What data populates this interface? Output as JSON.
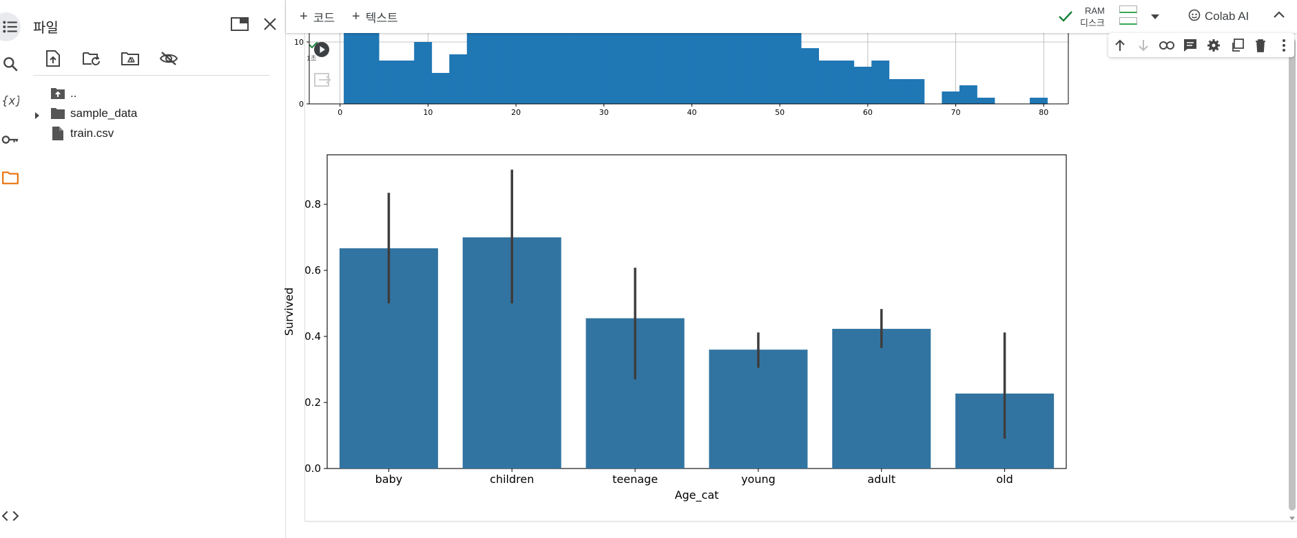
{
  "sidebar": {
    "icons": [
      "toc-icon",
      "search-icon",
      "variables-icon",
      "secrets-key-icon",
      "folder-icon"
    ],
    "bottom_icon": "code-icon",
    "accent": "#e8710a"
  },
  "files_panel": {
    "title": "파일",
    "tools": [
      "upload-icon",
      "refresh-folder-icon",
      "mount-drive-icon",
      "hide-icon"
    ],
    "tree": [
      {
        "label": "..",
        "type": "parent"
      },
      {
        "label": "sample_data",
        "type": "folder"
      },
      {
        "label": "train.csv",
        "type": "file"
      }
    ]
  },
  "toolbar": {
    "add_code": "코드",
    "add_text": "텍스트",
    "ram_label": "RAM",
    "disk_label": "디스크",
    "colab_ai": "Colab AI"
  },
  "cell": {
    "exec_time": "1초"
  },
  "chart_data": [
    {
      "type": "bar",
      "title": "",
      "xlabel": "",
      "ylabel": "",
      "x_ticks": [
        "0",
        "10",
        "20",
        "30",
        "40",
        "50",
        "60",
        "70",
        "80"
      ],
      "y_ticks": [
        "0",
        "10"
      ],
      "bin_width": 2,
      "bins_start": [
        0.42,
        2.42,
        4.42,
        6.42,
        8.42,
        10.42,
        12.42,
        14.42,
        16.42,
        18.42,
        20.42,
        22.42,
        24.42,
        26.42,
        28.42,
        30.42,
        32.42,
        34.42,
        36.42,
        38.42,
        40.42,
        42.42,
        44.42,
        46.42,
        48.42,
        50.42,
        52.42,
        54.42,
        56.42,
        58.42,
        60.42,
        62.42,
        64.42,
        66.42,
        68.42,
        70.42,
        72.42,
        74.42,
        76.42,
        78.42
      ],
      "counts": [
        14,
        14,
        7,
        7,
        10,
        5,
        8,
        14,
        14,
        14,
        14,
        14,
        14,
        14,
        14,
        14,
        14,
        14,
        14,
        14,
        14,
        14,
        14,
        14,
        14,
        14,
        9,
        7,
        7,
        6,
        7,
        4,
        4,
        0,
        2,
        3,
        1,
        0,
        0,
        1
      ],
      "xlim": [
        -3.5,
        82.8
      ],
      "ylim_visible": [
        0,
        12.5
      ],
      "grid": true,
      "color": "#1f77b4"
    },
    {
      "type": "bar",
      "title": "",
      "xlabel": "Age_cat",
      "ylabel": "Survived",
      "categories": [
        "baby",
        "children",
        "teenage",
        "young",
        "adult",
        "old"
      ],
      "values": [
        0.667,
        0.7,
        0.455,
        0.36,
        0.423,
        0.227
      ],
      "ci_low": [
        0.5,
        0.5,
        0.27,
        0.305,
        0.365,
        0.09
      ],
      "ci_high": [
        0.835,
        0.905,
        0.608,
        0.412,
        0.483,
        0.412
      ],
      "y_ticks": [
        "0.0",
        "0.2",
        "0.4",
        "0.6",
        "0.8"
      ],
      "ylim": [
        0,
        0.95
      ],
      "grid": false,
      "color": "#3274a1"
    }
  ]
}
